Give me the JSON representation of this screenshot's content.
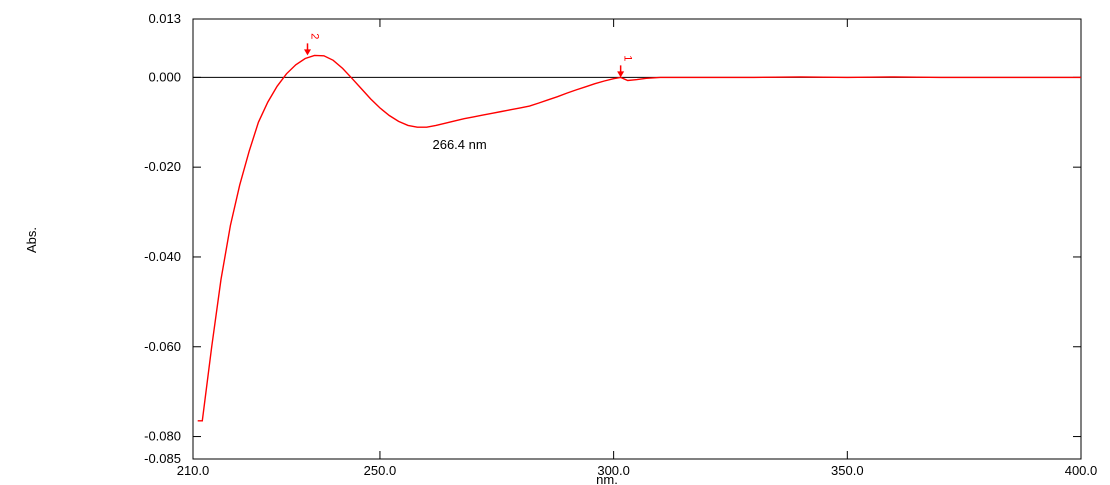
{
  "chart_data": {
    "type": "line",
    "title": "",
    "xlabel": "nm.",
    "ylabel": "Abs.",
    "xlim": [
      210.0,
      400.0
    ],
    "ylim": [
      -0.085,
      0.013
    ],
    "x_ticks": [
      210.0,
      250.0,
      300.0,
      350.0,
      400.0
    ],
    "x_tick_labels": [
      "210.0",
      "250.0",
      "300.0",
      "350.0",
      "400.0"
    ],
    "y_ticks": [
      0.013,
      0.0,
      -0.02,
      -0.04,
      -0.06,
      -0.08,
      -0.085
    ],
    "y_tick_labels": [
      "0.013",
      "0.000",
      "-0.020",
      "-0.040",
      "-0.060",
      "-0.080",
      "-0.085"
    ],
    "grid": false,
    "baseline_y": 0.0,
    "series": [
      {
        "color": "#ff0000",
        "x": [
          211,
          212,
          214,
          216,
          218,
          220,
          222,
          224,
          226,
          228,
          230,
          232,
          234,
          236,
          238,
          240,
          242,
          244,
          246,
          248,
          250,
          252,
          254,
          256,
          258,
          260,
          262,
          264,
          266,
          268,
          270,
          272,
          274,
          276,
          278,
          280,
          282,
          284,
          286,
          288,
          290,
          292,
          294,
          296,
          298,
          300,
          301.5,
          303,
          305,
          307,
          310,
          315,
          320,
          330,
          340,
          350,
          360,
          370,
          380,
          390,
          400
        ],
        "y": [
          -0.0765,
          -0.0765,
          -0.06,
          -0.045,
          -0.033,
          -0.024,
          -0.0165,
          -0.01,
          -0.0055,
          -0.002,
          0.0008,
          0.0028,
          0.0042,
          0.0049,
          0.0048,
          0.0038,
          0.002,
          -0.0002,
          -0.0025,
          -0.0048,
          -0.0068,
          -0.0085,
          -0.0098,
          -0.0107,
          -0.0111,
          -0.0111,
          -0.0107,
          -0.0102,
          -0.0097,
          -0.0092,
          -0.0088,
          -0.0084,
          -0.008,
          -0.0076,
          -0.0072,
          -0.0068,
          -0.0064,
          -0.0057,
          -0.005,
          -0.0043,
          -0.0035,
          -0.0028,
          -0.0021,
          -0.0014,
          -0.0008,
          -0.0003,
          0.0,
          -0.0007,
          -0.0005,
          -0.0002,
          0.0,
          0.0,
          0.0,
          0.0,
          0.0001,
          0.0,
          0.0001,
          0.0,
          0.0,
          0.0,
          0.0
        ]
      }
    ],
    "peaks": [
      {
        "label": "2",
        "x": 234.5,
        "y": 0.0049
      },
      {
        "label": "1",
        "x": 301.5,
        "y": 0.0
      }
    ],
    "annotations": [
      {
        "text": "266.4 nm",
        "x": 266.4,
        "y": -0.0111
      }
    ]
  }
}
